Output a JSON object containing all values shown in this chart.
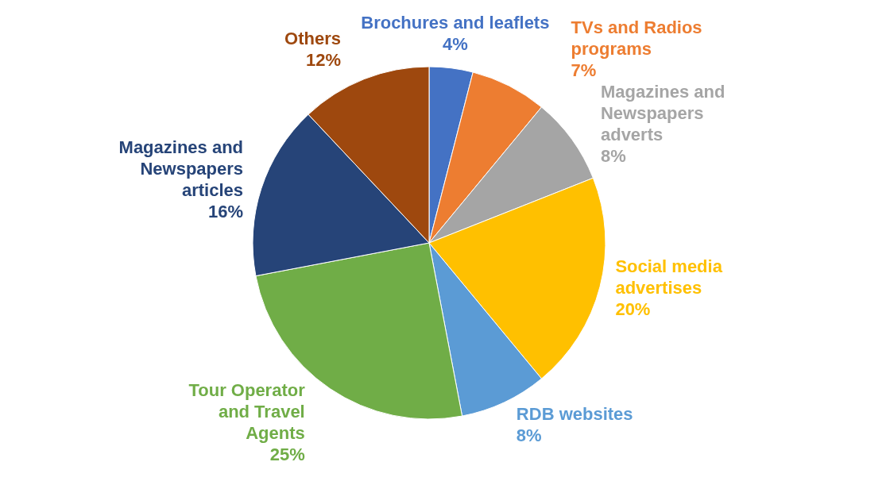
{
  "chart_data": {
    "type": "pie",
    "categories": [
      "Brochures and leaflets",
      "TVs and  Radios programs",
      "Magazines and Newspapers adverts",
      "Social media advertises",
      "RDB websites",
      "Tour Operator and Travel Agents",
      "Magazines and Newspapers articles",
      "Others"
    ],
    "values": [
      4,
      7,
      8,
      20,
      8,
      25,
      16,
      12
    ],
    "value_labels": [
      "4%",
      "7%",
      "8%",
      "20%",
      "8%",
      "25%",
      "16%",
      "12%"
    ],
    "colors": [
      "#4472c4",
      "#ed7d31",
      "#a5a5a5",
      "#ffc000",
      "#5b9bd5",
      "#70ad47",
      "#264478",
      "#9e480e"
    ],
    "legend": false
  }
}
